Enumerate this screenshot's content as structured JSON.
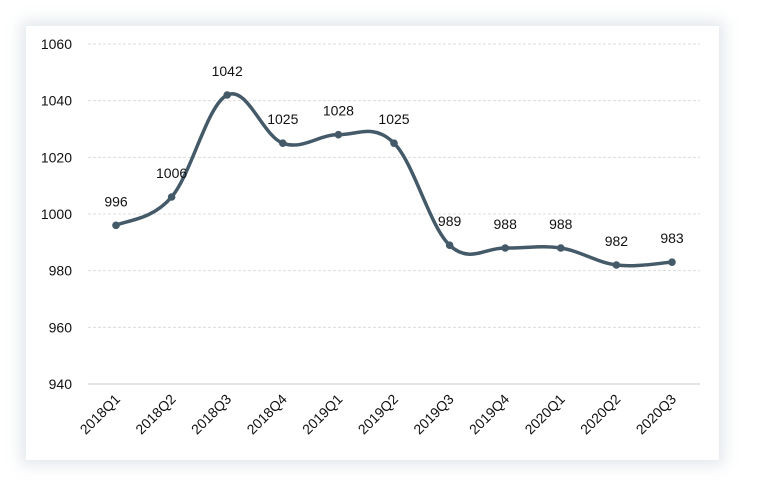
{
  "chart_data": {
    "type": "line",
    "title": "",
    "xlabel": "",
    "ylabel": "",
    "categories": [
      "2018Q1",
      "2018Q2",
      "2018Q3",
      "2018Q4",
      "2019Q1",
      "2019Q2",
      "2019Q3",
      "2019Q4",
      "2020Q1",
      "2020Q2",
      "2020Q3"
    ],
    "series": [
      {
        "values": [
          996,
          1006,
          1042,
          1025,
          1028,
          1025,
          989,
          988,
          988,
          982,
          983
        ]
      }
    ],
    "data_labels": [
      "996",
      "1006",
      "1042",
      "1025",
      "1028",
      "1025",
      "989",
      "988",
      "988",
      "982",
      "983"
    ],
    "ylim": [
      940,
      1060
    ],
    "yticks": [
      940,
      960,
      980,
      1000,
      1020,
      1040,
      1060
    ],
    "grid": true,
    "smooth": true,
    "line_color": "#445a68",
    "grid_color": "#dcdcdc"
  }
}
